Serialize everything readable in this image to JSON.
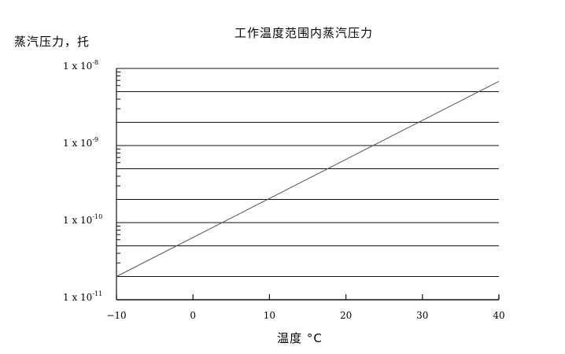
{
  "chart_data": {
    "type": "line",
    "title": "工作温度范围内蒸汽压力",
    "ylabel": "蒸汽压力，托",
    "xlabel": "温度 °C",
    "x_scale": "linear",
    "y_scale": "log",
    "xlim": [
      -10,
      40
    ],
    "ylim": [
      1e-11,
      1e-08
    ],
    "x_ticks": [
      -10,
      0,
      10,
      20,
      30,
      40
    ],
    "x_tick_labels": [
      "−10",
      "0",
      "10",
      "20",
      "30",
      "40"
    ],
    "y_ticks": [
      {
        "value": 1e-08,
        "base": "1 x 10",
        "exp": "-8"
      },
      {
        "value": 1e-09,
        "base": "1 x 10",
        "exp": "-9"
      },
      {
        "value": 1e-10,
        "base": "1 x 10",
        "exp": "-10"
      },
      {
        "value": 1e-11,
        "base": "1 x 10",
        "exp": "-11"
      }
    ],
    "grid": {
      "horizontal_major": true,
      "horizontal_minor": true,
      "vertical": false
    },
    "series": [
      {
        "x": [
          -10,
          40
        ],
        "y": [
          2e-11,
          6.8e-09
        ],
        "color": "#555555"
      }
    ]
  }
}
